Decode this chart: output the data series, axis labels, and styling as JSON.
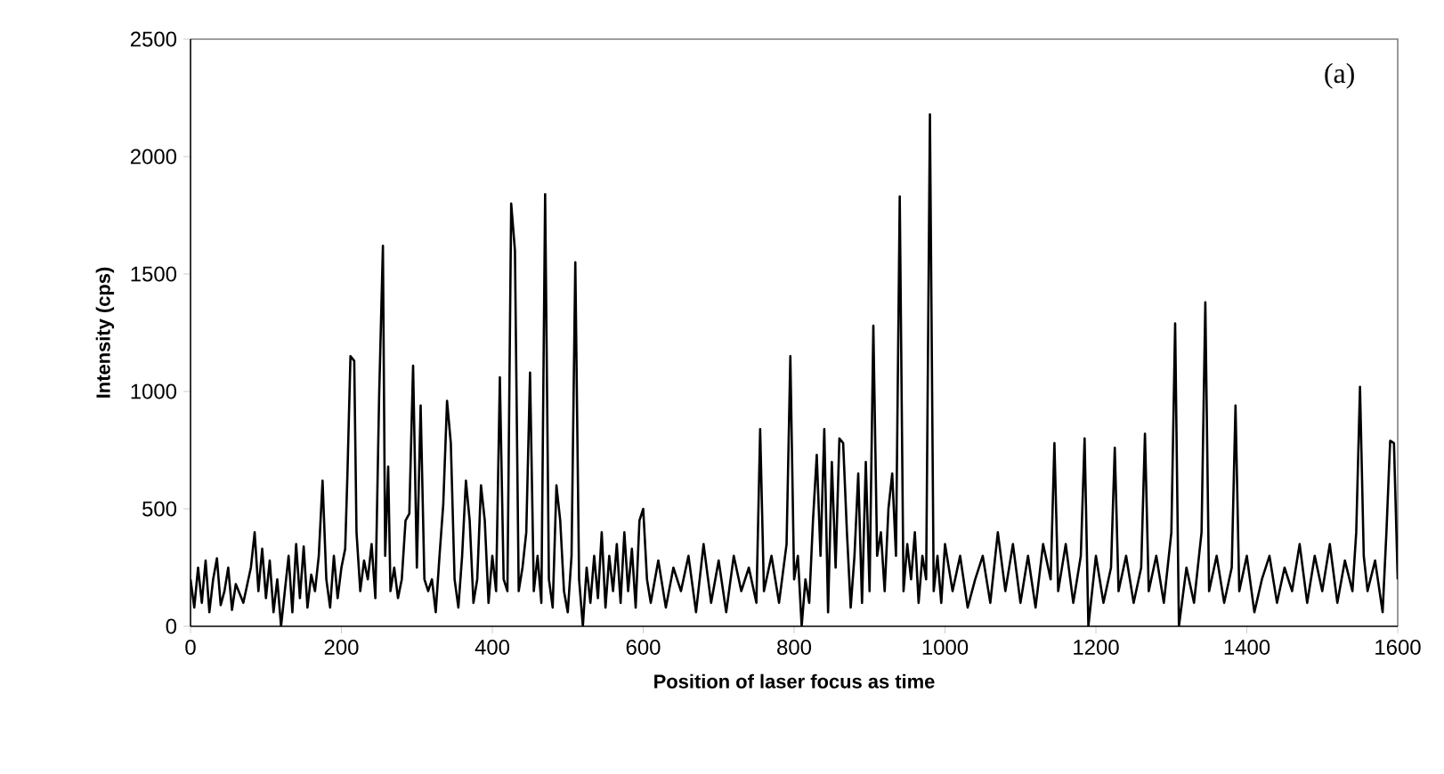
{
  "chart_data": {
    "type": "line",
    "xlabel": "Position of laser focus as time",
    "ylabel": "Intensity (cps)",
    "annotations": [
      "(a)"
    ],
    "xlim": [
      0,
      1600
    ],
    "xticks": [
      0,
      200,
      400,
      600,
      800,
      1000,
      1200,
      1400,
      1600
    ],
    "ylim": [
      0,
      2500
    ],
    "yticks": [
      0,
      500,
      1000,
      1500,
      2000,
      2500
    ],
    "grid": false,
    "marker": "none",
    "line_style": "solid",
    "series": [
      {
        "color": "#000000",
        "x": [
          0,
          5,
          10,
          15,
          20,
          25,
          30,
          35,
          40,
          45,
          50,
          55,
          60,
          70,
          80,
          85,
          90,
          95,
          100,
          105,
          110,
          115,
          120,
          125,
          130,
          135,
          140,
          145,
          150,
          155,
          160,
          165,
          170,
          175,
          180,
          185,
          190,
          195,
          200,
          205,
          208,
          212,
          217,
          220,
          225,
          230,
          235,
          240,
          245,
          250,
          255,
          258,
          262,
          265,
          270,
          275,
          280,
          285,
          290,
          295,
          300,
          305,
          310,
          315,
          320,
          325,
          330,
          335,
          340,
          345,
          350,
          355,
          360,
          365,
          370,
          375,
          380,
          385,
          390,
          395,
          400,
          405,
          410,
          415,
          420,
          425,
          430,
          435,
          440,
          445,
          450,
          455,
          460,
          465,
          470,
          475,
          480,
          485,
          490,
          495,
          500,
          505,
          510,
          515,
          520,
          525,
          530,
          535,
          540,
          545,
          550,
          555,
          560,
          565,
          570,
          575,
          580,
          585,
          590,
          595,
          600,
          605,
          610,
          620,
          630,
          640,
          650,
          660,
          670,
          680,
          690,
          700,
          710,
          720,
          730,
          740,
          750,
          755,
          760,
          770,
          780,
          790,
          795,
          800,
          805,
          810,
          815,
          820,
          825,
          830,
          835,
          840,
          845,
          850,
          855,
          860,
          865,
          870,
          875,
          880,
          885,
          890,
          895,
          900,
          905,
          910,
          915,
          920,
          925,
          930,
          935,
          940,
          945,
          950,
          955,
          960,
          965,
          970,
          975,
          980,
          985,
          990,
          995,
          1000,
          1010,
          1020,
          1030,
          1040,
          1050,
          1060,
          1070,
          1080,
          1090,
          1100,
          1110,
          1120,
          1130,
          1140,
          1145,
          1150,
          1160,
          1170,
          1180,
          1185,
          1190,
          1200,
          1210,
          1220,
          1225,
          1230,
          1240,
          1250,
          1260,
          1265,
          1270,
          1280,
          1290,
          1300,
          1305,
          1310,
          1320,
          1330,
          1340,
          1345,
          1350,
          1360,
          1370,
          1380,
          1385,
          1390,
          1400,
          1410,
          1420,
          1430,
          1440,
          1450,
          1460,
          1470,
          1480,
          1490,
          1500,
          1510,
          1520,
          1530,
          1540,
          1545,
          1550,
          1555,
          1560,
          1570,
          1580,
          1585,
          1590,
          1595,
          1600
        ],
        "values": [
          200,
          80,
          250,
          100,
          280,
          60,
          200,
          290,
          90,
          150,
          250,
          70,
          180,
          100,
          250,
          400,
          150,
          330,
          120,
          280,
          60,
          200,
          0,
          150,
          300,
          60,
          350,
          120,
          340,
          80,
          220,
          150,
          300,
          620,
          200,
          80,
          300,
          120,
          250,
          330,
          650,
          1150,
          1130,
          400,
          150,
          280,
          200,
          350,
          120,
          980,
          1620,
          300,
          680,
          150,
          250,
          120,
          200,
          450,
          480,
          1110,
          250,
          940,
          200,
          150,
          200,
          60,
          300,
          520,
          960,
          780,
          200,
          80,
          300,
          620,
          450,
          100,
          200,
          600,
          450,
          100,
          300,
          150,
          1060,
          200,
          150,
          1800,
          1600,
          150,
          250,
          400,
          1080,
          150,
          300,
          100,
          1840,
          200,
          80,
          600,
          450,
          150,
          60,
          300,
          1550,
          200,
          0,
          250,
          100,
          300,
          120,
          400,
          80,
          300,
          150,
          350,
          100,
          400,
          150,
          330,
          80,
          450,
          500,
          200,
          100,
          280,
          80,
          250,
          150,
          300,
          60,
          350,
          100,
          280,
          60,
          300,
          150,
          250,
          100,
          840,
          150,
          300,
          100,
          350,
          1150,
          200,
          300,
          0,
          200,
          100,
          450,
          730,
          300,
          840,
          60,
          700,
          250,
          800,
          780,
          400,
          80,
          300,
          650,
          100,
          700,
          150,
          1280,
          300,
          400,
          150,
          500,
          650,
          300,
          1830,
          150,
          350,
          200,
          400,
          100,
          300,
          200,
          2180,
          150,
          300,
          100,
          350,
          150,
          300,
          80,
          200,
          300,
          100,
          400,
          150,
          350,
          100,
          300,
          80,
          350,
          200,
          780,
          150,
          350,
          100,
          300,
          800,
          0,
          300,
          100,
          250,
          760,
          150,
          300,
          100,
          250,
          820,
          150,
          300,
          100,
          400,
          1290,
          0,
          250,
          100,
          400,
          1380,
          150,
          300,
          100,
          250,
          940,
          150,
          300,
          60,
          200,
          300,
          100,
          250,
          150,
          350,
          100,
          300,
          150,
          350,
          100,
          280,
          150,
          400,
          1020,
          300,
          150,
          280,
          60,
          400,
          790,
          780,
          200
        ]
      }
    ]
  }
}
